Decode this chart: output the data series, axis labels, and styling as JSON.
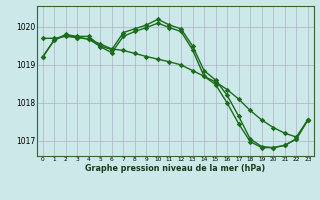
{
  "line1": [
    1019.2,
    1019.65,
    1019.8,
    1019.75,
    1019.75,
    1019.5,
    1019.4,
    1019.85,
    1019.95,
    1020.05,
    1020.2,
    1020.05,
    1019.95,
    1019.5,
    1018.85,
    1018.6,
    1018.2,
    1017.65,
    1017.05,
    1016.85,
    1016.82,
    1016.88,
    1017.05,
    1017.55
  ],
  "line2": [
    1019.7,
    1019.7,
    1019.75,
    1019.72,
    1019.68,
    1019.55,
    1019.42,
    1019.38,
    1019.3,
    1019.22,
    1019.15,
    1019.08,
    1019.0,
    1018.85,
    1018.7,
    1018.55,
    1018.35,
    1018.1,
    1017.8,
    1017.55,
    1017.35,
    1017.2,
    1017.1,
    1017.55
  ],
  "line3": [
    1019.2,
    1019.65,
    1019.78,
    1019.72,
    1019.68,
    1019.48,
    1019.32,
    1019.75,
    1019.88,
    1019.98,
    1020.1,
    1019.98,
    1019.88,
    1019.4,
    1018.7,
    1018.48,
    1018.0,
    1017.45,
    1016.98,
    1016.82,
    1016.82,
    1016.88,
    1017.05,
    1017.55
  ],
  "x": [
    0,
    1,
    2,
    3,
    4,
    5,
    6,
    7,
    8,
    9,
    10,
    11,
    12,
    13,
    14,
    15,
    16,
    17,
    18,
    19,
    20,
    21,
    22,
    23
  ],
  "ylim": [
    1016.6,
    1020.55
  ],
  "yticks": [
    1017,
    1018,
    1019,
    1020
  ],
  "xlabel": "Graphe pression niveau de la mer (hPa)",
  "line_color": "#1a6b1a",
  "bg_color": "#cce8e8",
  "grid_color": "#b0b0cc"
}
